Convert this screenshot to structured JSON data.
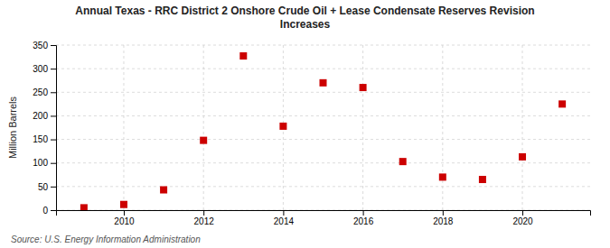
{
  "chart_data": {
    "type": "scatter",
    "title": "Annual Texas - RRC District 2 Onshore Crude Oil + Lease Condensate Reserves Revision\nIncreases",
    "ylabel": "Million Barrels",
    "source": "Source: U.S. Energy Information Administration",
    "x": [
      2009,
      2010,
      2011,
      2012,
      2013,
      2014,
      2015,
      2016,
      2017,
      2018,
      2019,
      2020,
      2021
    ],
    "values": [
      5,
      12,
      43,
      148,
      327,
      178,
      270,
      260,
      103,
      70,
      65,
      113,
      225
    ],
    "xlim": [
      2008.3,
      2021.7
    ],
    "ylim": [
      0,
      350
    ],
    "xticks": [
      2010,
      2012,
      2014,
      2016,
      2018,
      2020
    ],
    "yticks": [
      0,
      50,
      100,
      150,
      200,
      250,
      300,
      350
    ],
    "color": "#cc0000",
    "marker": "square",
    "grid": true
  }
}
